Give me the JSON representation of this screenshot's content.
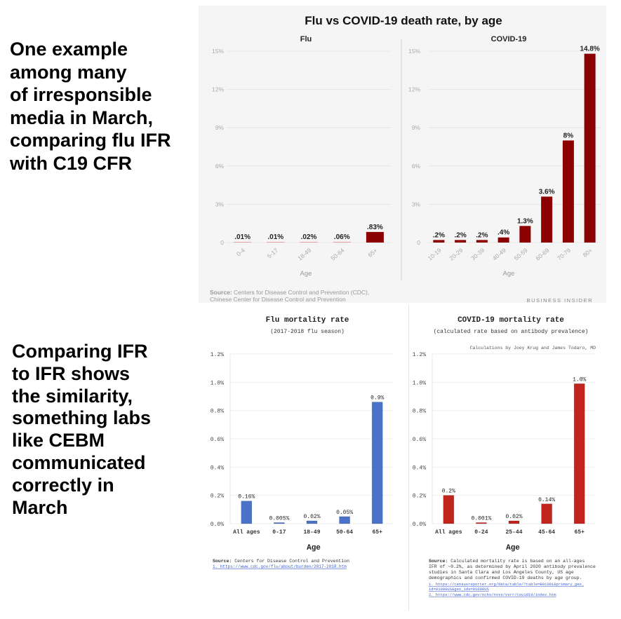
{
  "captions": {
    "top": "One example\namong many\nof irresponsible\nmedia in March,\ncomparing flu IFR\nwith C19 CFR",
    "bottom": "Comparing IFR\nto IFR shows\nthe similarity,\nsomething labs\nlike CEBM\ncommunicated\ncorrectly in\nMarch"
  },
  "top_figure": {
    "title": "Flu vs COVID-19 death rate, by age",
    "source_label": "Source:",
    "source_line1": " Centers for Disease Control and Prevention (CDC),",
    "source_line2": "Chinese Center for Disease Control and Prevention",
    "brand": "BUSINESS INSIDER",
    "colors": {
      "bar": "#8b0000",
      "background": "#f5f5f5"
    }
  },
  "bottom_left": {
    "source_label": "Source:",
    "source_text": " Centers for Disease Control and Prevention",
    "links": [
      "1. https://www.cdc.gov/flu/about/burden/2017-2018.htm"
    ]
  },
  "bottom_right": {
    "note": "Calculations by Joey Krug and James Todaro, MD",
    "source_label": "Source:",
    "source_lines": [
      " Calculated mortality rate is based on an all-ages",
      "IFR of ~0.2%, as determined by April 2020 antibody prevalence",
      "studies in Santa Clara and Los Angeles County, US age",
      "demographics and confirmed COVID-19 deaths by age group."
    ],
    "links": [
      "1. https://censusreporter.org/data/table/?table=B01001&primary_geo_",
      "id=01000US&geo_ids=01000US",
      "2. https://www.cdc.gov/nchs/nvss/vsrr/covid19/index.htm"
    ]
  },
  "chart_data": [
    {
      "type": "bar",
      "title": "Flu",
      "xlabel": "Age",
      "ylabel": "",
      "categories": [
        "0-4",
        "5-17",
        "18-49",
        "50-64",
        "65+"
      ],
      "values": [
        0.01,
        0.01,
        0.02,
        0.06,
        0.83
      ],
      "data_labels": [
        ".01%",
        ".01%",
        ".02%",
        ".06%",
        ".83%"
      ],
      "ylim": [
        0,
        15
      ],
      "yticks": [
        0,
        3,
        6,
        9,
        12,
        15
      ],
      "ytick_labels": [
        "0",
        "3%",
        "6%",
        "9%",
        "12%",
        "15%"
      ],
      "grid": true,
      "color": "#8b0000"
    },
    {
      "type": "bar",
      "title": "COVID-19",
      "xlabel": "Age",
      "ylabel": "",
      "categories": [
        "10-19",
        "20-29",
        "30-39",
        "40-49",
        "50-59",
        "60-69",
        "70-79",
        "80+"
      ],
      "values": [
        0.2,
        0.2,
        0.2,
        0.4,
        1.3,
        3.6,
        8,
        14.8
      ],
      "data_labels": [
        ".2%",
        ".2%",
        ".2%",
        ".4%",
        "1.3%",
        "3.6%",
        "8%",
        "14.8%"
      ],
      "ylim": [
        0,
        15
      ],
      "yticks": [
        0,
        3,
        6,
        9,
        12,
        15
      ],
      "ytick_labels": [
        "0",
        "3%",
        "6%",
        "9%",
        "12%",
        "15%"
      ],
      "grid": true,
      "color": "#8b0000"
    },
    {
      "type": "bar",
      "title": "Flu mortality rate",
      "subtitle": "(2017-2018 flu season)",
      "xlabel": "Age",
      "ylabel": "",
      "categories": [
        "All ages",
        "0-17",
        "18-49",
        "50-64",
        "65+"
      ],
      "values": [
        0.16,
        0.005,
        0.02,
        0.05,
        0.86
      ],
      "data_labels": [
        "0.16%",
        "0.005%",
        "0.02%",
        "0.05%",
        "0.9%"
      ],
      "ylim": [
        0,
        1.2
      ],
      "yticks": [
        0,
        0.2,
        0.4,
        0.6,
        0.8,
        1.0,
        1.2
      ],
      "ytick_labels": [
        "0.0%",
        "0.2%",
        "0.4%",
        "0.6%",
        "0.8%",
        "1.0%",
        "1.2%"
      ],
      "grid": true,
      "color": "#4a72c8"
    },
    {
      "type": "bar",
      "title": "COVID-19 mortality rate",
      "subtitle": "(calculated rate based on antibody prevalence)",
      "xlabel": "Age",
      "ylabel": "",
      "categories": [
        "All ages",
        "0-24",
        "25-44",
        "45-64",
        "65+"
      ],
      "values": [
        0.2,
        0.001,
        0.02,
        0.14,
        0.99
      ],
      "data_labels": [
        "0.2%",
        "0.001%",
        "0.02%",
        "0.14%",
        "1.0%"
      ],
      "ylim": [
        0,
        1.2
      ],
      "yticks": [
        0,
        0.2,
        0.4,
        0.6,
        0.8,
        1.0,
        1.2
      ],
      "ytick_labels": [
        "0.0%",
        "0.2%",
        "0.4%",
        "0.6%",
        "0.8%",
        "1.0%",
        "1.2%"
      ],
      "grid": true,
      "color": "#c0241c"
    }
  ]
}
